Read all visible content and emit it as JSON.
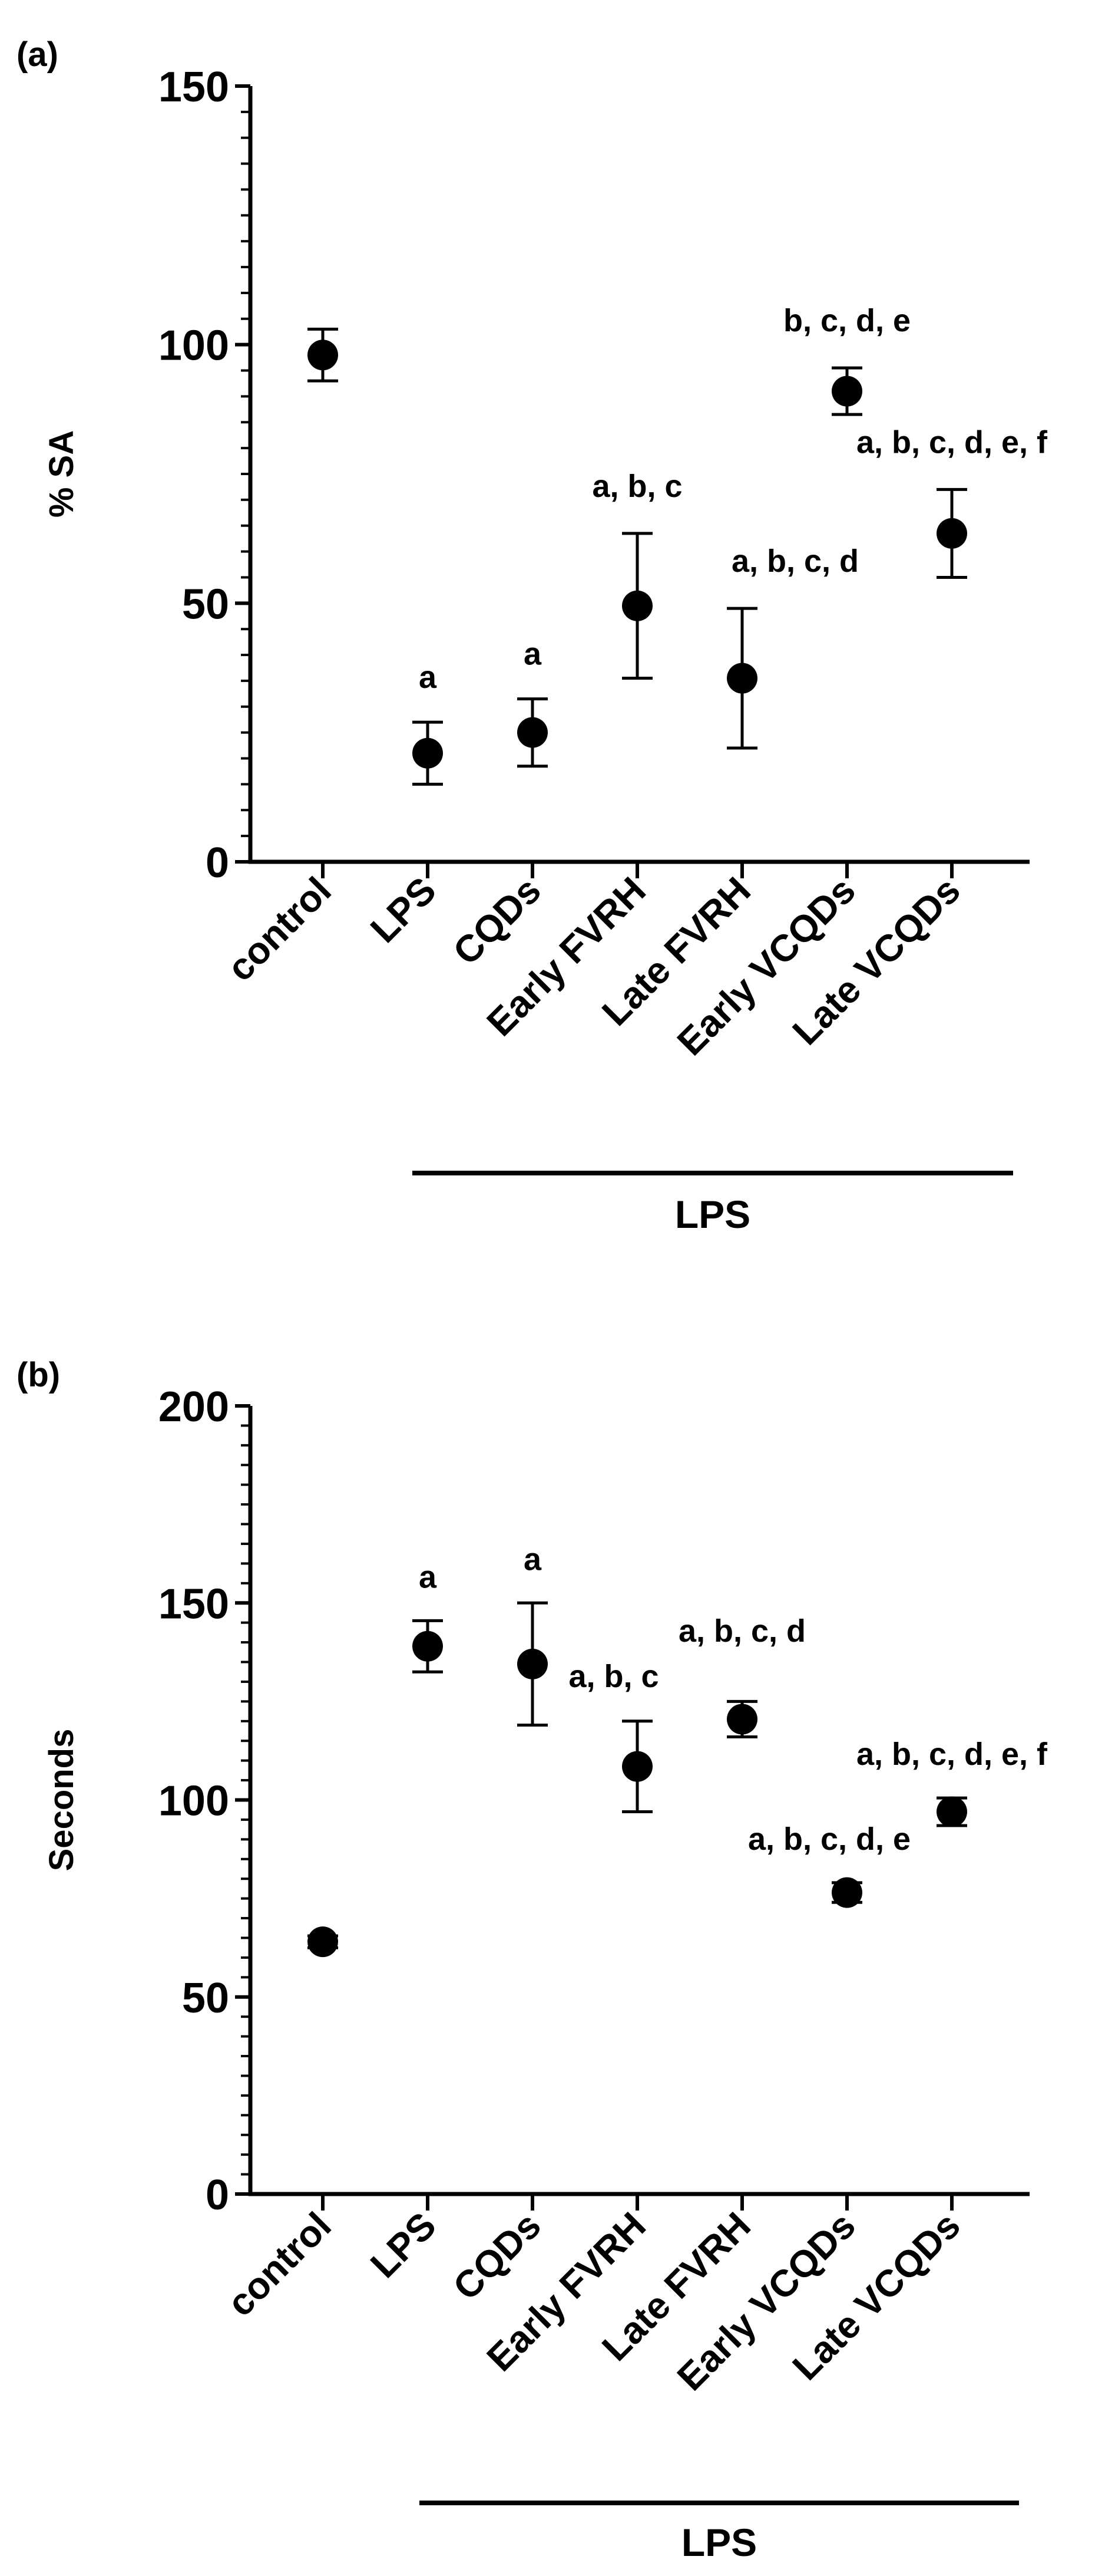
{
  "chart_data": [
    {
      "panel_label": "(a)",
      "type": "scatter",
      "ylabel": "% SA",
      "ylim": [
        0,
        150
      ],
      "y_ticks": [
        0,
        50,
        100,
        150
      ],
      "categories": [
        "control",
        "LPS",
        "CQDs",
        "Early FVRH",
        "Late FVRH",
        "Early VCQDs",
        "Late VCQDs"
      ],
      "values": [
        98,
        21,
        25,
        49.5,
        35.5,
        91,
        63.5
      ],
      "errors": [
        5,
        6,
        6.5,
        14,
        13.5,
        4.5,
        8.5
      ],
      "significance": [
        "",
        "a",
        "a",
        "a, b, c",
        "a, b, c, d",
        "b, c, d, e",
        "a, b, c, d, e, f"
      ],
      "group_label": "LPS",
      "grid": false
    },
    {
      "panel_label": "(b)",
      "type": "scatter",
      "ylabel": "Seconds",
      "ylim": [
        0,
        200
      ],
      "y_ticks": [
        0,
        50,
        100,
        150,
        200
      ],
      "categories": [
        "control",
        "LPS",
        "CQDs",
        "Early FVRH",
        "Late FVRH",
        "Early VCQDs",
        "Late VCQDs"
      ],
      "values": [
        64,
        139,
        134.5,
        108.5,
        120.5,
        76.5,
        97
      ],
      "errors": [
        1.5,
        6.5,
        15.5,
        11.5,
        4.5,
        2.5,
        3.5
      ],
      "significance": [
        "",
        "a",
        "a",
        "a, b, c",
        "a, b, c, d",
        "a, b, c, d, e",
        "a, b, c, d, e, f"
      ],
      "group_label": "LPS",
      "grid": false
    }
  ]
}
